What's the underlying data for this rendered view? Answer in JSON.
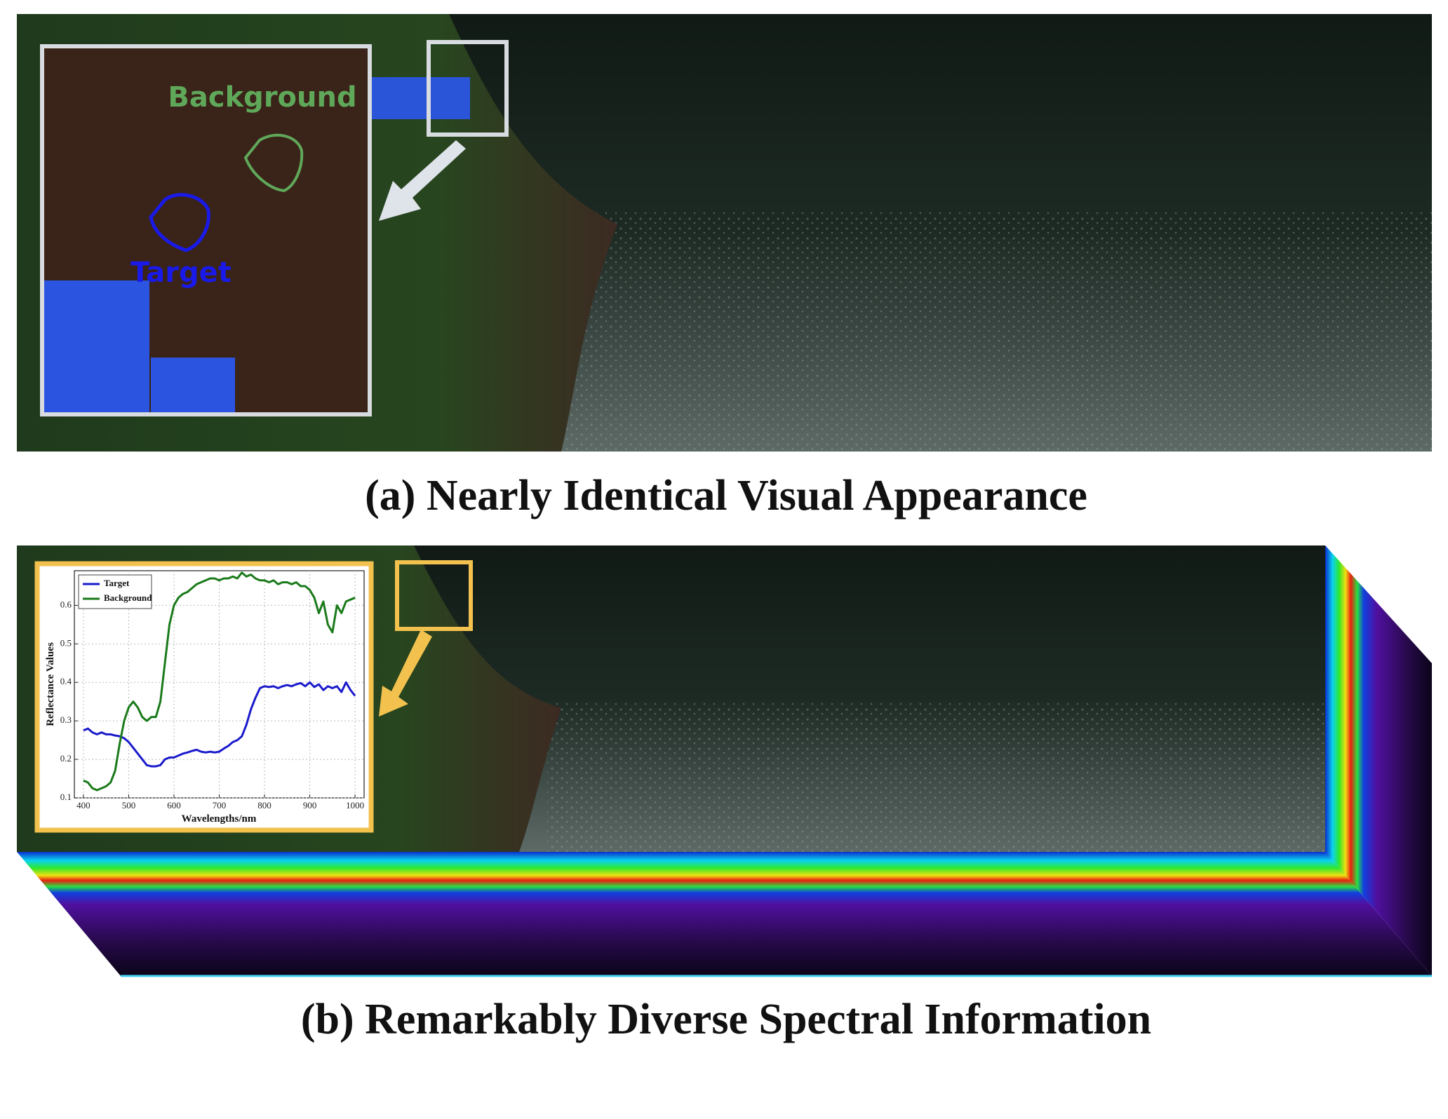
{
  "panel_a": {
    "caption": "(a) Nearly Identical Visual Appearance",
    "annotations": {
      "background": "Background",
      "target": "Target"
    }
  },
  "panel_b": {
    "caption": "(b) Remarkably Diverse Spectral Information"
  },
  "chart_data": {
    "type": "line",
    "x_label": "Wavelengths/nm",
    "y_label": "Reflectance Values",
    "x": [
      400,
      410,
      420,
      430,
      440,
      450,
      460,
      470,
      480,
      490,
      500,
      510,
      520,
      530,
      540,
      550,
      560,
      570,
      580,
      590,
      600,
      610,
      620,
      630,
      640,
      650,
      660,
      670,
      680,
      690,
      700,
      710,
      720,
      730,
      740,
      750,
      760,
      770,
      780,
      790,
      800,
      810,
      820,
      830,
      840,
      850,
      860,
      870,
      880,
      890,
      900,
      910,
      920,
      930,
      940,
      950,
      960,
      970,
      980,
      990,
      1000
    ],
    "series": [
      {
        "name": "Target",
        "color": "#1a1acc",
        "values": [
          0.275,
          0.28,
          0.27,
          0.265,
          0.27,
          0.265,
          0.265,
          0.262,
          0.26,
          0.255,
          0.245,
          0.23,
          0.215,
          0.2,
          0.185,
          0.182,
          0.182,
          0.185,
          0.2,
          0.205,
          0.205,
          0.21,
          0.215,
          0.218,
          0.222,
          0.225,
          0.22,
          0.218,
          0.22,
          0.218,
          0.22,
          0.228,
          0.235,
          0.245,
          0.25,
          0.26,
          0.29,
          0.33,
          0.36,
          0.385,
          0.39,
          0.388,
          0.39,
          0.385,
          0.39,
          0.393,
          0.39,
          0.395,
          0.398,
          0.39,
          0.4,
          0.388,
          0.395,
          0.38,
          0.39,
          0.385,
          0.39,
          0.375,
          0.4,
          0.38,
          0.365
        ]
      },
      {
        "name": "Background",
        "color": "#1a7a1a",
        "values": [
          0.145,
          0.14,
          0.125,
          0.12,
          0.125,
          0.13,
          0.14,
          0.17,
          0.24,
          0.3,
          0.335,
          0.35,
          0.335,
          0.31,
          0.3,
          0.31,
          0.31,
          0.35,
          0.45,
          0.55,
          0.6,
          0.62,
          0.63,
          0.635,
          0.645,
          0.655,
          0.66,
          0.665,
          0.67,
          0.67,
          0.665,
          0.67,
          0.67,
          0.675,
          0.67,
          0.685,
          0.675,
          0.68,
          0.67,
          0.665,
          0.665,
          0.66,
          0.665,
          0.655,
          0.66,
          0.66,
          0.655,
          0.66,
          0.65,
          0.65,
          0.64,
          0.62,
          0.58,
          0.61,
          0.55,
          0.53,
          0.6,
          0.58,
          0.61,
          0.615,
          0.62
        ]
      }
    ],
    "xlim": [
      380,
      1020
    ],
    "xticks": [
      400,
      500,
      600,
      700,
      800,
      900,
      1000
    ],
    "ylim": [
      0.1,
      0.69
    ],
    "yticks": [
      0.1,
      0.2,
      0.3,
      0.4,
      0.5,
      0.6
    ],
    "grid": true,
    "legend": "upper left"
  }
}
